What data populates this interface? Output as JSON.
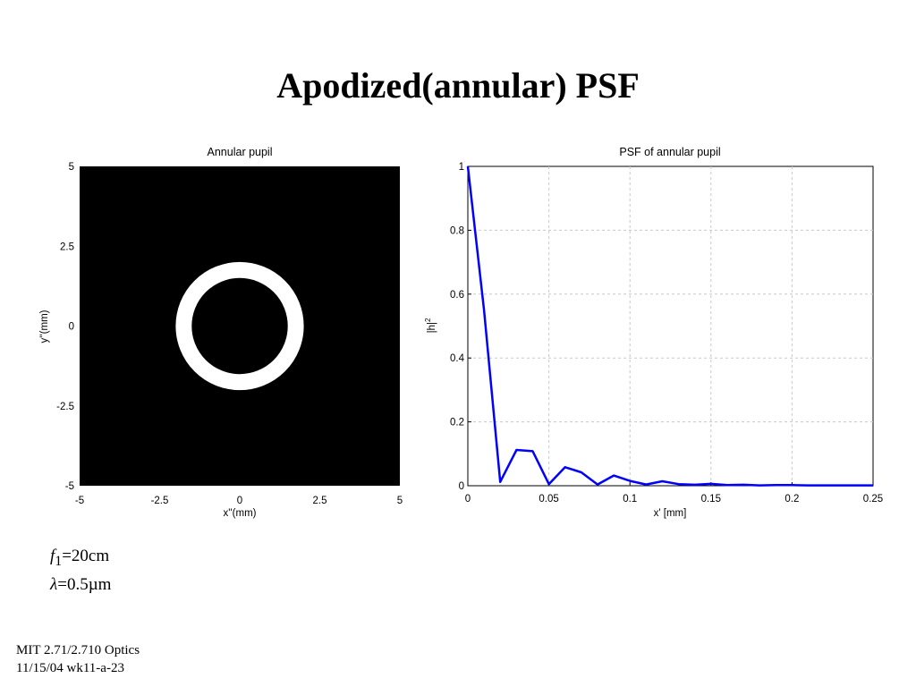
{
  "slide": {
    "title": "Apodized(annular) PSF",
    "params": [
      {
        "symbol": "f",
        "sub": "1",
        "value": "=20cm"
      },
      {
        "symbol": "λ",
        "sub": "",
        "value": "=0.5µm"
      }
    ],
    "footer": [
      "MIT 2.71/2.710 Optics",
      "11/15/04 wk11-a-23"
    ]
  },
  "chart_data": [
    {
      "type": "heatmap",
      "title": "Annular pupil",
      "xlabel": "x''(mm)",
      "ylabel": "y''(mm)",
      "xlim": [
        -5,
        5
      ],
      "ylim": [
        -5,
        5
      ],
      "xticks": [
        "-5",
        "-2.5",
        "0",
        "2.5",
        "5"
      ],
      "yticks": [
        "5",
        "2.5",
        "0",
        "-2.5",
        "-5"
      ],
      "annulus": {
        "inner_radius": 1.5,
        "outer_radius": 2.0,
        "center": [
          0,
          0
        ]
      },
      "colors": {
        "background": "#000000",
        "ring": "#ffffff"
      }
    },
    {
      "type": "line",
      "title": "PSF of annular pupil",
      "xlabel": "x' [mm]",
      "ylabel": "|h|",
      "ylabel_sup": "2",
      "xlim": [
        0,
        0.25
      ],
      "ylim": [
        0,
        1
      ],
      "xticks": [
        "0",
        "0.05",
        "0.1",
        "0.15",
        "0.2",
        "0.25"
      ],
      "yticks": [
        "0",
        "0.2",
        "0.4",
        "0.6",
        "0.8",
        "1"
      ],
      "grid": true,
      "color": "#0000ff",
      "x": [
        0,
        0.01,
        0.02,
        0.03,
        0.04,
        0.05,
        0.06,
        0.07,
        0.08,
        0.09,
        0.1,
        0.11,
        0.12,
        0.13,
        0.14,
        0.15,
        0.16,
        0.17,
        0.18,
        0.19,
        0.2,
        0.21,
        0.22,
        0.23,
        0.24,
        0.25
      ],
      "y": [
        1.0,
        0.55,
        0.012,
        0.112,
        0.108,
        0.005,
        0.058,
        0.042,
        0.004,
        0.032,
        0.015,
        0.004,
        0.014,
        0.005,
        0.003,
        0.006,
        0.002,
        0.003,
        0.001,
        0.002,
        0.002,
        0.001,
        0.001,
        0.001,
        0.001,
        0.001
      ]
    }
  ]
}
